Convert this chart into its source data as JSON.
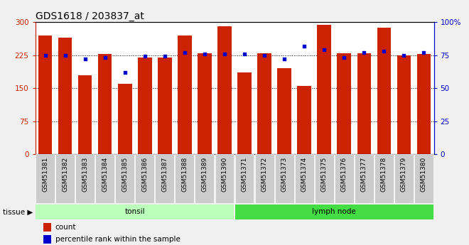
{
  "title": "GDS1618 / 203837_at",
  "categories": [
    "GSM51381",
    "GSM51382",
    "GSM51383",
    "GSM51384",
    "GSM51385",
    "GSM51386",
    "GSM51387",
    "GSM51388",
    "GSM51389",
    "GSM51390",
    "GSM51371",
    "GSM51372",
    "GSM51373",
    "GSM51374",
    "GSM51375",
    "GSM51376",
    "GSM51377",
    "GSM51378",
    "GSM51379",
    "GSM51380"
  ],
  "bar_values": [
    270,
    265,
    180,
    228,
    160,
    220,
    220,
    270,
    230,
    290,
    185,
    230,
    195,
    155,
    293,
    230,
    230,
    288,
    225,
    228
  ],
  "percentile_values": [
    75,
    75,
    72,
    73,
    62,
    74,
    74,
    77,
    76,
    76,
    76,
    75,
    72,
    82,
    79,
    73,
    77,
    78,
    75,
    77
  ],
  "bar_color": "#cc2200",
  "percentile_color": "#0000cc",
  "ylim_left": [
    0,
    300
  ],
  "ylim_right": [
    0,
    100
  ],
  "yticks_left": [
    0,
    75,
    150,
    225,
    300
  ],
  "yticks_right": [
    0,
    25,
    50,
    75,
    100
  ],
  "groups": [
    {
      "label": "tonsil",
      "start": 0,
      "end": 10,
      "color": "#bbffbb"
    },
    {
      "label": "lymph node",
      "start": 10,
      "end": 20,
      "color": "#44dd44"
    }
  ],
  "tissue_label": "tissue",
  "legend_count": "count",
  "legend_percentile": "percentile rank within the sample",
  "fig_bg_color": "#f0f0f0",
  "plot_bg_color": "#ffffff",
  "xtick_bg_color": "#cccccc",
  "title_fontsize": 10,
  "tick_fontsize": 6.5
}
